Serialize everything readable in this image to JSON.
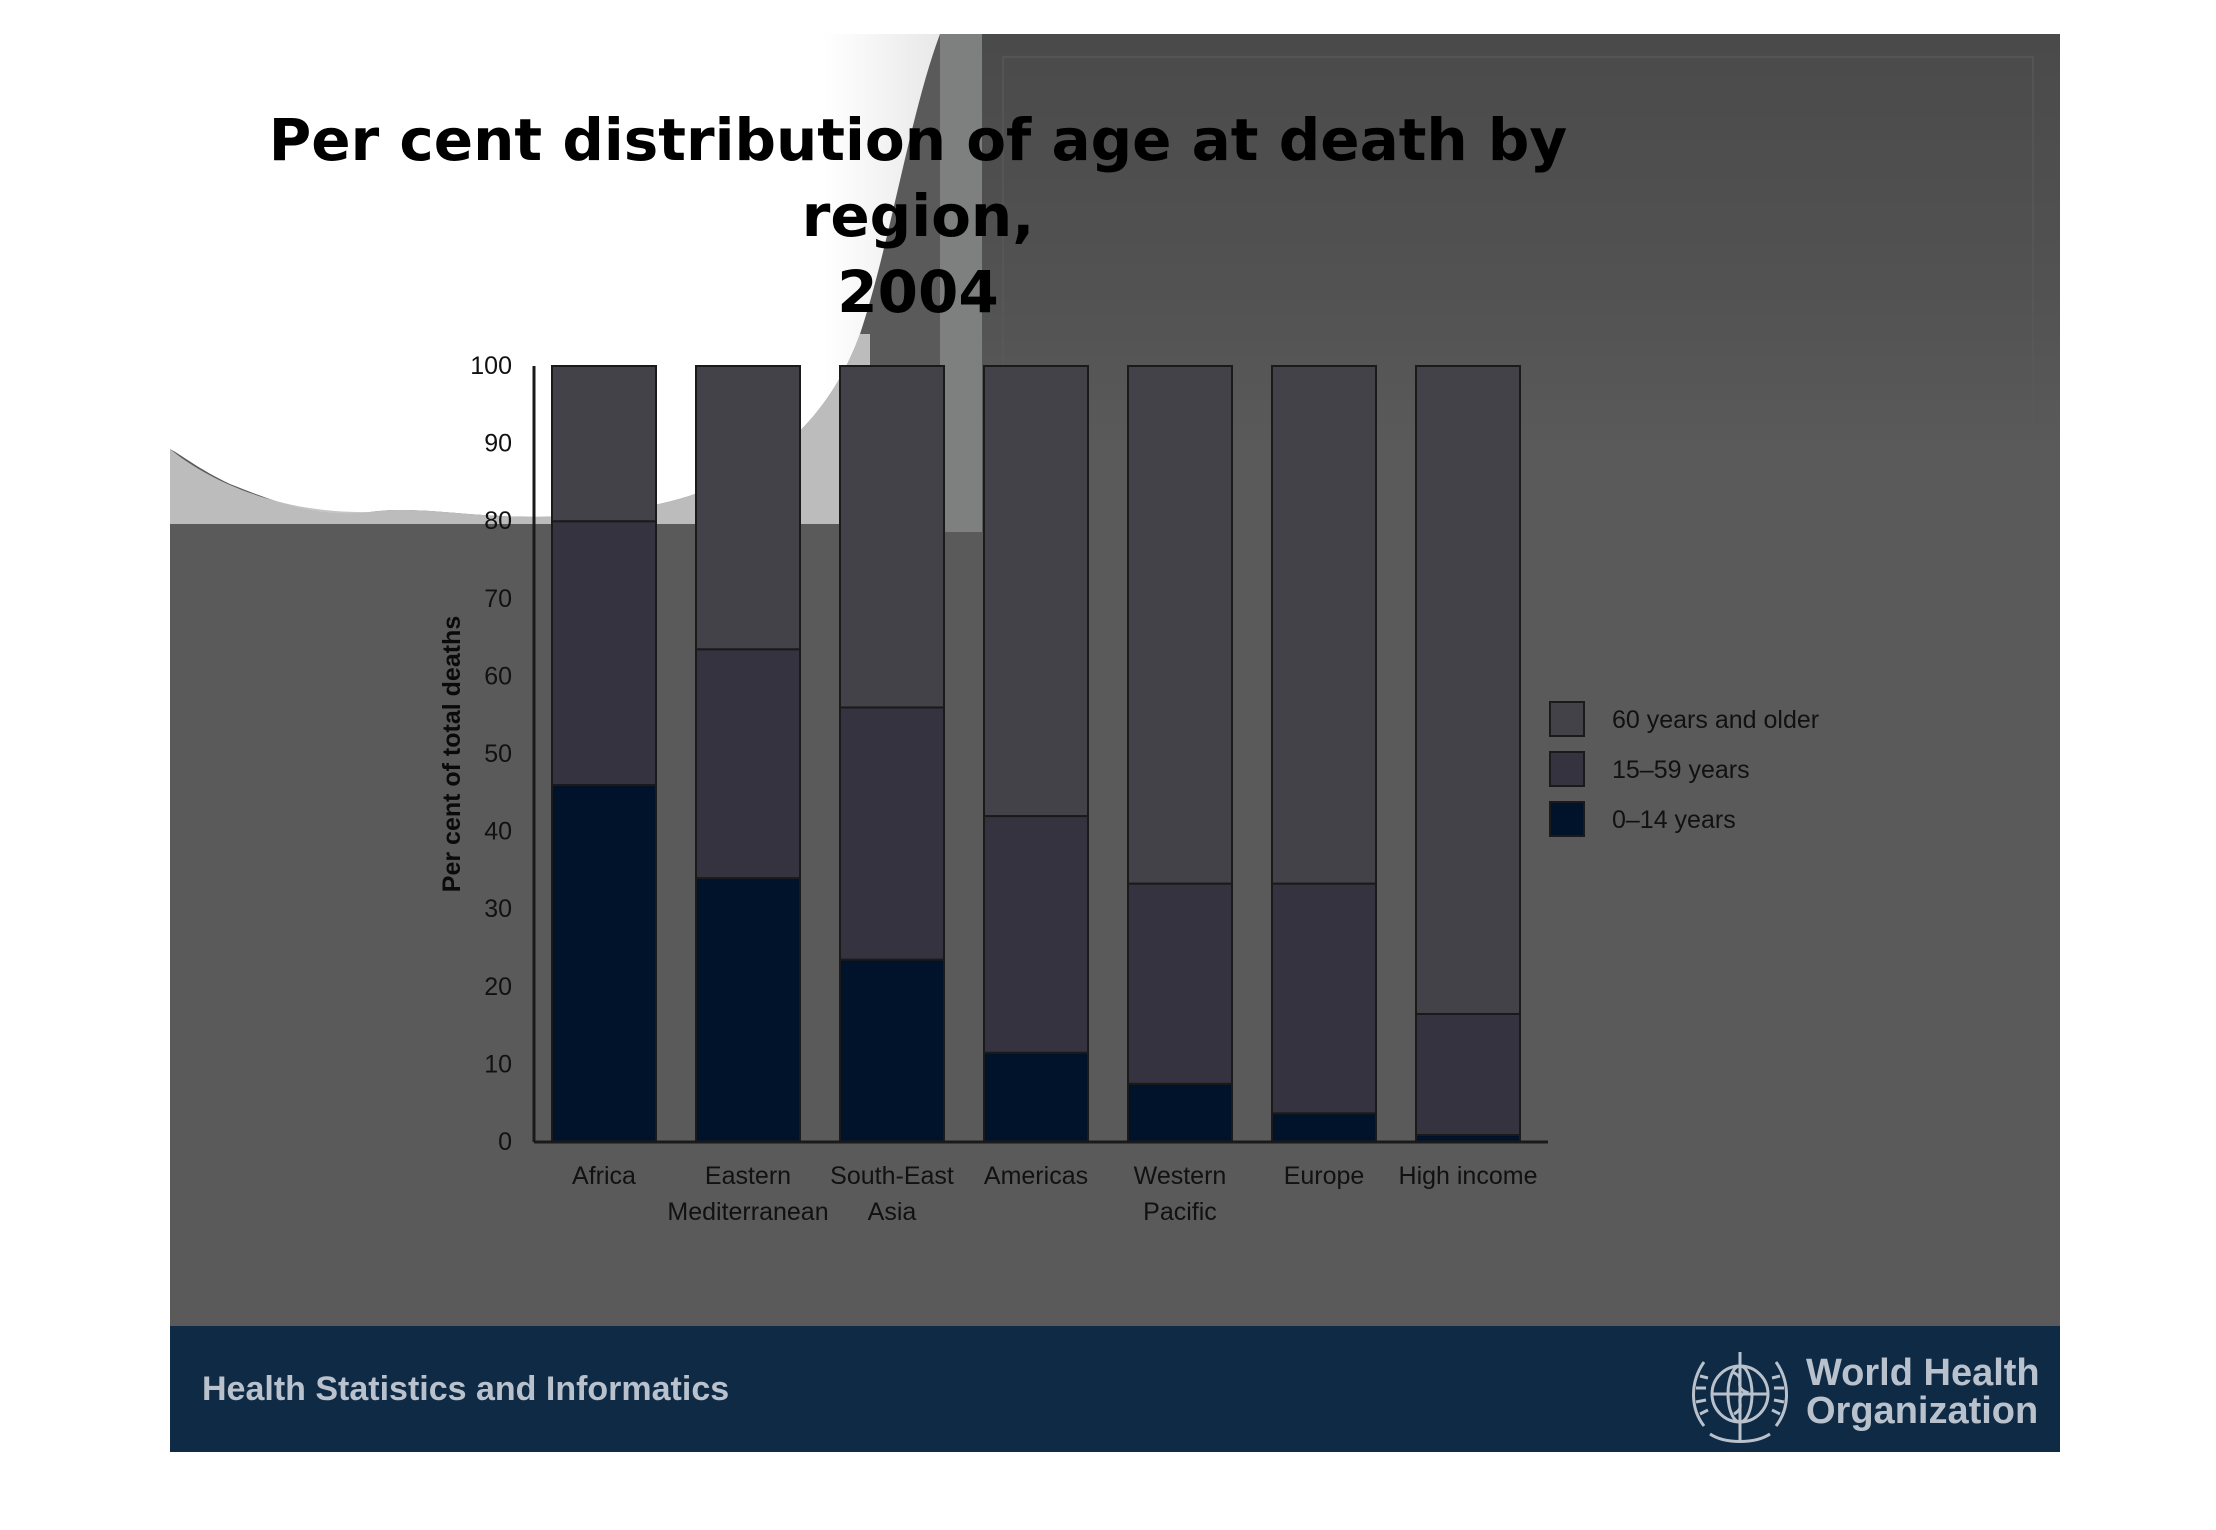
{
  "slide": {
    "footer_text": "Health Statistics and Informatics",
    "organization_line1": "World Health",
    "organization_line2": "Organization",
    "logo_icon": "who-emblem-icon"
  },
  "chart_data": {
    "type": "bar",
    "stacked": true,
    "title_lines": [
      "Per cent distribution of age at death by region,",
      "2004"
    ],
    "ylabel": "Per cent of total deaths",
    "xlabel": "",
    "ylim": [
      0,
      100
    ],
    "yticks": [
      0,
      10,
      20,
      30,
      40,
      50,
      60,
      70,
      80,
      90,
      100
    ],
    "categories": [
      [
        "Africa"
      ],
      [
        "Eastern",
        "Mediterranean"
      ],
      [
        "South-East",
        "Asia"
      ],
      [
        "Americas"
      ],
      [
        "Western",
        "Pacific"
      ],
      [
        "Europe"
      ],
      [
        "High income"
      ]
    ],
    "series": [
      {
        "name": "0–14 years",
        "color": "#01132b",
        "values": [
          46,
          34,
          23.5,
          11.5,
          7.5,
          3.7,
          0.9
        ]
      },
      {
        "name": "15–59 years",
        "color": "#34333f",
        "values": [
          34,
          29.5,
          32.5,
          30.5,
          25.8,
          29.6,
          15.6
        ]
      },
      {
        "name": "60 years and older",
        "color": "#434249",
        "values": [
          20,
          36.5,
          44,
          58,
          66.7,
          66.7,
          83.5
        ]
      }
    ],
    "legend_order": [
      "60 years and older",
      "15–59 years",
      "0–14 years"
    ],
    "legend_position": "right",
    "grid": false
  }
}
